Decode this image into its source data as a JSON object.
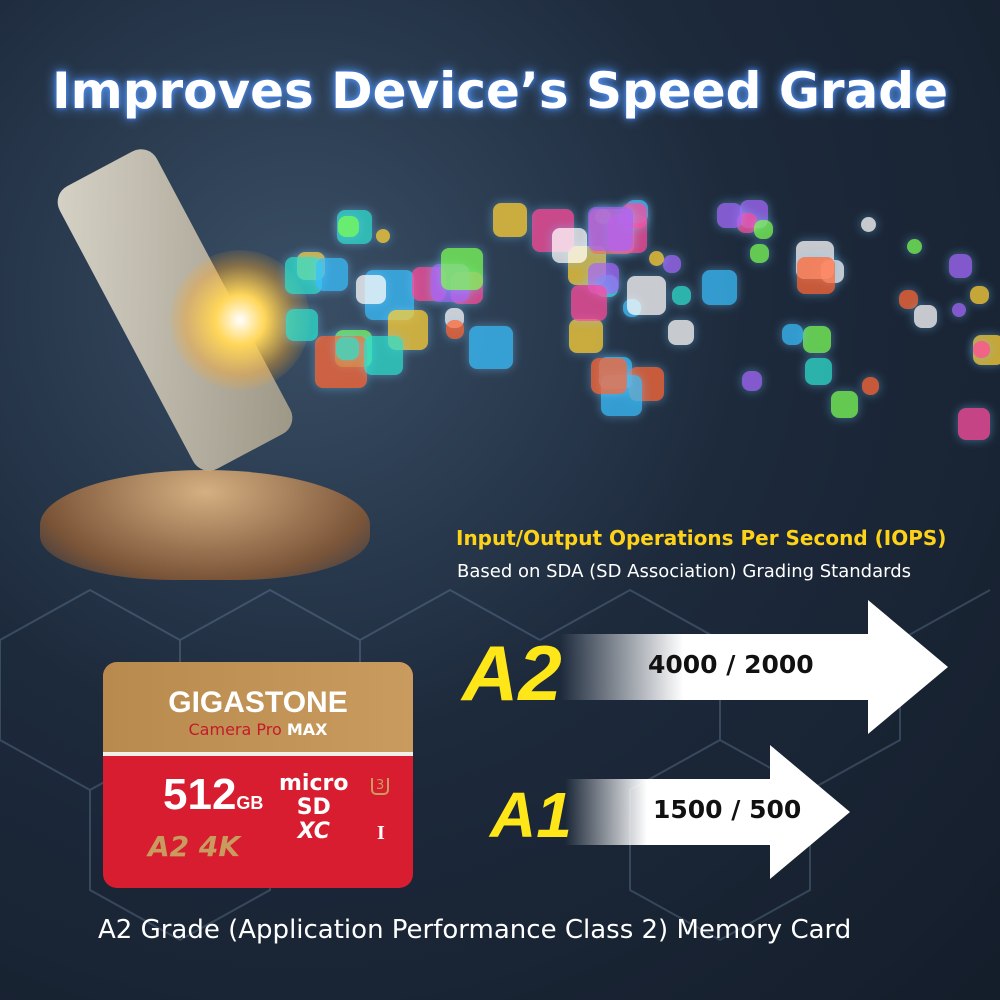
{
  "headline": "Improves Device’s Speed Grade",
  "iops": {
    "title": "Input/Output Operations Per Second (IOPS)",
    "subtitle": "Based on SDA (SD Association) Grading Standards"
  },
  "grades": [
    {
      "label": "A2",
      "value": "4000 / 2000"
    },
    {
      "label": "A1",
      "value": "1500 / 500"
    }
  ],
  "card": {
    "brand": "GIGASTONE",
    "model": "Camera Pro",
    "model_suffix": "MAX",
    "capacity": "512",
    "unit": "GB",
    "badges": "A2 4K",
    "micro": "micro",
    "sd": "SD",
    "xc": "XC",
    "speed_class": "3",
    "uhs": "I"
  },
  "caption": "A2 Grade (Application Performance Class 2) Memory Card",
  "colors": {
    "accent_yellow": "#ffd21a",
    "card_red": "#d71d2f",
    "card_gold": "#c99b5f"
  }
}
